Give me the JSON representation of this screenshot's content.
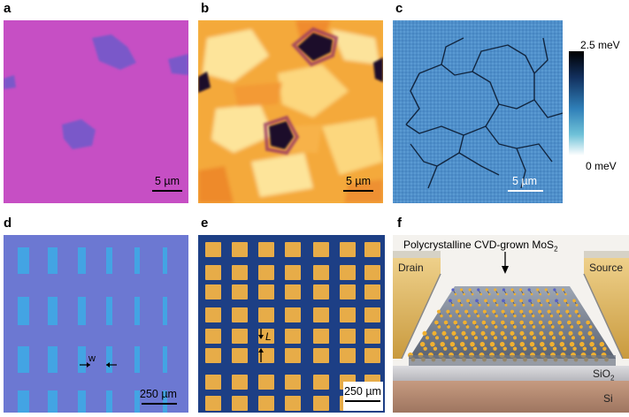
{
  "panels": {
    "a": {
      "label": "a",
      "scalebar": "5 µm",
      "colors": {
        "background": "#c64fc4",
        "flake": "#7a59c9"
      }
    },
    "b": {
      "label": "b",
      "scalebar": "5 µm",
      "colors": {
        "background": "#f6b441",
        "light": "#fde49a",
        "dark": "#1a0a2a"
      }
    },
    "c": {
      "label": "c",
      "scalebar": "5 µm",
      "colors": {
        "map": "#4f8fca",
        "grain_boundary": "#0b1a30"
      },
      "colorbar": {
        "max_label": "2.5 meV",
        "min_label": "0 meV",
        "gradient": [
          "#000000",
          "#12305e",
          "#2f7fb8",
          "#6fc2d8",
          "#ffffff"
        ]
      }
    },
    "d": {
      "label": "d",
      "scalebar": "250 µm",
      "arrow_label": "w",
      "colors": {
        "substrate": "#6c78d2",
        "channel": "#3fa8e4"
      }
    },
    "e": {
      "label": "e",
      "scalebar": "250 µm",
      "arrow_label": "L",
      "colors": {
        "substrate": "#1d3f85",
        "pad": "#e7ac48"
      }
    },
    "f": {
      "label": "f",
      "title_main": "Polycrystalline CVD-grown MoS",
      "title_sub": "2",
      "drain": "Drain",
      "source": "Source",
      "oxide_main": "SiO",
      "oxide_sub": "2",
      "substrate": "Si",
      "colors": {
        "sky": "#f4f2ee",
        "contact": "#e4b64e",
        "oxide": "#c8c8cc",
        "silicon": "#b38a73",
        "sulfur": "#f0b030",
        "molybdenum": "#5660c8"
      }
    }
  }
}
